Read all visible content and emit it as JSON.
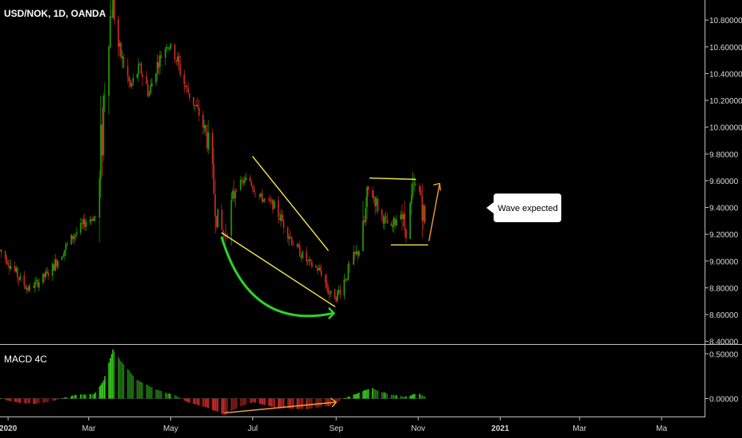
{
  "chart_data": [
    {
      "type": "candlestick",
      "title": "USD/NOK, 1D, OANDA",
      "colors": {
        "up": "#26a600",
        "down": "#d42c24",
        "annotation_yellow": "#f5e94c",
        "annotation_green": "#2ed12a",
        "annotation_orange": "#f39c3a"
      },
      "y_ticks": [
        "10.80000",
        "10.60000",
        "10.40000",
        "10.20000",
        "10.00000",
        "9.80000",
        "9.60000",
        "9.40000",
        "9.20000",
        "9.00000",
        "8.80000",
        "8.60000",
        "8.40000"
      ],
      "ylim": [
        8.38,
        10.95
      ],
      "x_labels": [
        "2020",
        "Mar",
        "May",
        "Jul",
        "Sep",
        "Nov",
        "2021",
        "Mar",
        "Ma"
      ],
      "xlim": [
        "2019-12-26",
        "2021-06-02"
      ],
      "price_path": [
        [
          "2019-12-26",
          9.08
        ],
        [
          "2020-01-01",
          9.0
        ],
        [
          "2020-01-10",
          8.86
        ],
        [
          "2020-01-16",
          8.79
        ],
        [
          "2020-01-23",
          8.84
        ],
        [
          "2020-02-01",
          8.92
        ],
        [
          "2020-02-10",
          9.06
        ],
        [
          "2020-02-18",
          9.18
        ],
        [
          "2020-02-25",
          9.26
        ],
        [
          "2020-02-28",
          9.3
        ],
        [
          "2020-03-06",
          9.33
        ],
        [
          "2020-03-09",
          9.55
        ],
        [
          "2020-03-12",
          10.2
        ],
        [
          "2020-03-16",
          10.75
        ],
        [
          "2020-03-19",
          10.95
        ],
        [
          "2020-03-23",
          10.6
        ],
        [
          "2020-03-26",
          10.5
        ],
        [
          "2020-04-01",
          10.3
        ],
        [
          "2020-04-08",
          10.45
        ],
        [
          "2020-04-15",
          10.25
        ],
        [
          "2020-04-20",
          10.45
        ],
        [
          "2020-04-28",
          10.62
        ],
        [
          "2020-05-03",
          10.58
        ],
        [
          "2020-05-12",
          10.3
        ],
        [
          "2020-05-22",
          10.1
        ],
        [
          "2020-05-28",
          9.92
        ],
        [
          "2020-06-05",
          9.3
        ],
        [
          "2020-06-10",
          9.18
        ],
        [
          "2020-06-18",
          9.55
        ],
        [
          "2020-06-28",
          9.62
        ],
        [
          "2020-07-06",
          9.48
        ],
        [
          "2020-07-16",
          9.42
        ],
        [
          "2020-07-24",
          9.28
        ],
        [
          "2020-08-02",
          9.1
        ],
        [
          "2020-08-12",
          8.98
        ],
        [
          "2020-08-21",
          8.92
        ],
        [
          "2020-08-27",
          8.76
        ],
        [
          "2020-09-01",
          8.73
        ],
        [
          "2020-09-07",
          8.86
        ],
        [
          "2020-09-14",
          9.02
        ],
        [
          "2020-09-20",
          9.12
        ],
        [
          "2020-09-25",
          9.52
        ],
        [
          "2020-09-29",
          9.48
        ],
        [
          "2020-10-05",
          9.33
        ],
        [
          "2020-10-12",
          9.24
        ],
        [
          "2020-10-19",
          9.38
        ],
        [
          "2020-10-23",
          9.2
        ],
        [
          "2020-10-29",
          9.56
        ],
        [
          "2020-11-03",
          9.5
        ],
        [
          "2020-11-07",
          9.18
        ]
      ],
      "annotations": {
        "wedge_upper": [
          [
            "2020-07-01",
            9.78
          ],
          [
            "2020-08-26",
            9.08
          ]
        ],
        "wedge_lower": [
          [
            "2020-06-08",
            9.21
          ],
          [
            "2020-08-31",
            8.66
          ]
        ],
        "box_top": [
          [
            "2020-09-26",
            9.62
          ],
          [
            "2020-10-30",
            9.61
          ]
        ],
        "box_bottom": [
          [
            "2020-10-12",
            9.12
          ],
          [
            "2020-11-08",
            9.12
          ]
        ],
        "projection": [
          [
            "2020-11-09",
            9.15
          ],
          [
            "2020-11-17",
            9.58
          ]
        ],
        "callout_text": "Wave expected"
      }
    },
    {
      "type": "histogram",
      "title": "MACD 4C",
      "y_ticks": [
        "0.50000",
        "0.00000"
      ],
      "ylim": [
        -0.2,
        0.6
      ],
      "histogram_path": [
        [
          "2019-12-26",
          0.0
        ],
        [
          "2020-01-10",
          -0.05
        ],
        [
          "2020-01-22",
          -0.06
        ],
        [
          "2020-02-05",
          -0.02
        ],
        [
          "2020-02-20",
          0.04
        ],
        [
          "2020-03-05",
          0.05
        ],
        [
          "2020-03-12",
          0.2
        ],
        [
          "2020-03-19",
          0.55
        ],
        [
          "2020-03-25",
          0.42
        ],
        [
          "2020-04-05",
          0.22
        ],
        [
          "2020-04-20",
          0.1
        ],
        [
          "2020-05-05",
          0.03
        ],
        [
          "2020-05-12",
          -0.03
        ],
        [
          "2020-05-28",
          -0.1
        ],
        [
          "2020-06-10",
          -0.18
        ],
        [
          "2020-06-20",
          -0.1
        ],
        [
          "2020-07-01",
          -0.04
        ],
        [
          "2020-07-18",
          -0.1
        ],
        [
          "2020-08-10",
          -0.12
        ],
        [
          "2020-08-28",
          -0.08
        ],
        [
          "2020-09-05",
          -0.01
        ],
        [
          "2020-09-12",
          0.03
        ],
        [
          "2020-09-27",
          0.12
        ],
        [
          "2020-10-10",
          0.05
        ],
        [
          "2020-10-22",
          0.02
        ],
        [
          "2020-11-01",
          0.06
        ],
        [
          "2020-11-07",
          0.02
        ]
      ],
      "annotations": {
        "trend_arrow": [
          [
            "2020-06-10",
            -0.16
          ],
          [
            "2020-09-01",
            -0.04
          ]
        ]
      }
    }
  ]
}
